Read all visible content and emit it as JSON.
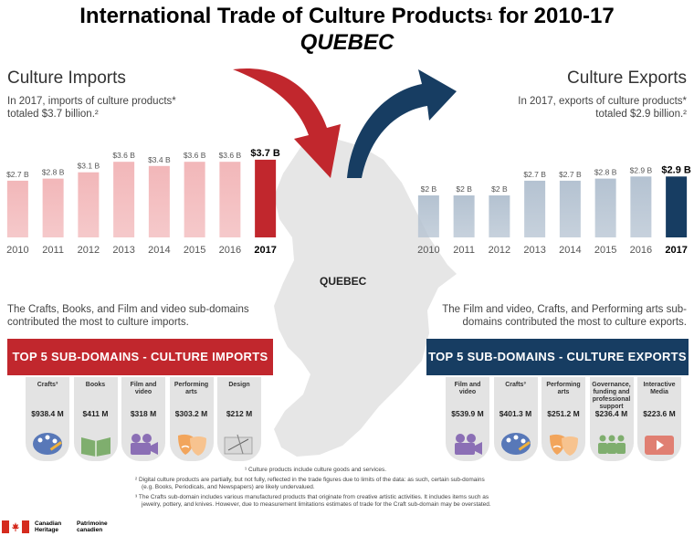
{
  "title": "International Trade of Culture Products",
  "title_footnote": "1",
  "title_suffix": " for 2010-17",
  "subtitle": "QUEBEC",
  "map_label": "QUEBEC",
  "imports": {
    "heading": "Culture Imports",
    "summary_line1": "In 2017, imports of culture products*",
    "summary_line2": "totaled $3.7 billion.²",
    "contribution": "The Crafts, Books, and Film and video sub-domains contributed the most to culture imports.",
    "banner": "TOP 5 SUB-DOMAINS - CULTURE IMPORTS",
    "color": "#c1272d",
    "light_color": "#f2b7b9",
    "subdomains": [
      {
        "name": "Crafts³",
        "value": "$938.4 M",
        "icon": "palette-icon"
      },
      {
        "name": "Books",
        "value": "$411 M",
        "icon": "book-icon"
      },
      {
        "name": "Film and video",
        "value": "$318 M",
        "icon": "film-camera-icon"
      },
      {
        "name": "Performing arts",
        "value": "$303.2 M",
        "icon": "theatre-masks-icon"
      },
      {
        "name": "Design",
        "value": "$212 M",
        "icon": "drafting-icon"
      }
    ]
  },
  "exports": {
    "heading": "Culture Exports",
    "summary_line1": "In 2017, exports of culture products*",
    "summary_line2": "totaled $2.9 billion.²",
    "contribution": "The Film and video, Crafts, and Performing arts sub-domains contributed the most to culture exports.",
    "banner": "TOP 5 SUB-DOMAINS - CULTURE EXPORTS",
    "color": "#173d62",
    "light_color": "#b4c2d1",
    "subdomains": [
      {
        "name": "Film and video",
        "value": "$539.9 M",
        "icon": "film-camera-icon"
      },
      {
        "name": "Crafts³",
        "value": "$401.3 M",
        "icon": "palette-icon"
      },
      {
        "name": "Performing arts",
        "value": "$251.2 M",
        "icon": "theatre-masks-icon"
      },
      {
        "name": "Governance, funding and professional support",
        "value": "$236.4 M",
        "icon": "people-icon"
      },
      {
        "name": "Interactive Media",
        "value": "$223.6 M",
        "icon": "play-icon"
      }
    ]
  },
  "footnotes": {
    "f1": "¹ Culture products include culture goods and services.",
    "f2a": "² Digital culture products are partially, but not fully, reflected in the trade figures due to limits of the data: as such, certain sub-domains",
    "f2b": "(e.g. Books, Periodicals, and Newspapers) are likely undervalued.",
    "f3a": "³ The Crafts sub-domain includes various manufactured products that originate from creative artistic activities. It includes items such as",
    "f3b": "jewelry, pottery, and knives. However, due to measurement limitations estimates of trade for the Craft sub-domain may be overstated."
  },
  "logo": {
    "en1": "Canadian",
    "en2": "Heritage",
    "fr1": "Patrimoine",
    "fr2": "canadien"
  },
  "chart_data": [
    {
      "type": "bar",
      "name": "Culture Imports",
      "categories": [
        "2010",
        "2011",
        "2012",
        "2013",
        "2014",
        "2015",
        "2016",
        "2017"
      ],
      "values": [
        2.7,
        2.8,
        3.1,
        3.6,
        3.4,
        3.6,
        3.6,
        3.7
      ],
      "labels": [
        "$2.7 B",
        "$2.8 B",
        "$3.1 B",
        "$3.6 B",
        "$3.4 B",
        "$3.6 B",
        "$3.6 B",
        "$3.7 B"
      ],
      "highlight_index": 7,
      "ylim": [
        0,
        4
      ]
    },
    {
      "type": "bar",
      "name": "Culture Exports",
      "categories": [
        "2010",
        "2011",
        "2012",
        "2013",
        "2014",
        "2015",
        "2016",
        "2017"
      ],
      "values": [
        2.0,
        2.0,
        2.0,
        2.7,
        2.7,
        2.8,
        2.9,
        2.9
      ],
      "labels": [
        "$2 B",
        "$2 B",
        "$2 B",
        "$2.7 B",
        "$2.7 B",
        "$2.8 B",
        "$2.9 B",
        "$2.9 B"
      ],
      "highlight_index": 7,
      "ylim": [
        0,
        4
      ]
    }
  ]
}
